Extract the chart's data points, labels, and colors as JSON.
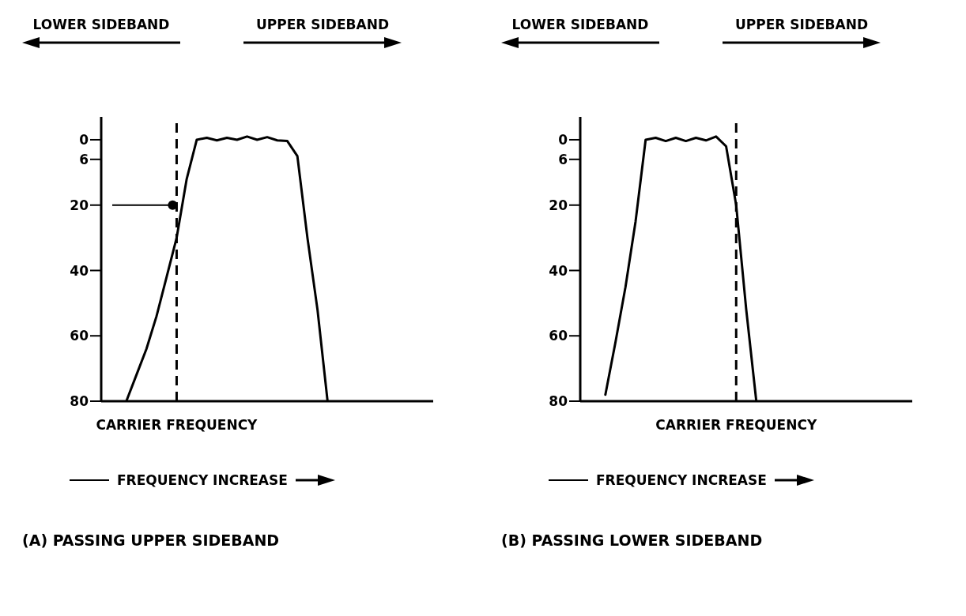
{
  "chart_data": [
    {
      "type": "line",
      "title": "(A) PASSING UPPER SIDEBAND",
      "xlabel": "FREQUENCY INCREASE",
      "annotations": [
        "LOWER SIDEBAND",
        "UPPER SIDEBAND"
      ],
      "categories": [
        null,
        null,
        null,
        null,
        null,
        null,
        null,
        "CARRIER FREQUENCY",
        null,
        null,
        null,
        null,
        null,
        null,
        null,
        null,
        null,
        null,
        null,
        null,
        null,
        null,
        null,
        null,
        null,
        null,
        null,
        null,
        null,
        null,
        null,
        null,
        null
      ],
      "ylim": [
        80,
        -7
      ],
      "yticks": [
        0,
        6,
        20,
        40,
        60,
        80
      ],
      "grid": false,
      "line_style": "solid",
      "ref_lines": [
        {
          "axis": "x",
          "value": "CARRIER FREQUENCY",
          "line_style": "dashed"
        },
        {
          "axis": "y",
          "value": 20
        }
      ],
      "series": [
        {
          "color": "#000000",
          "values": [
            null,
            null,
            80,
            72,
            64,
            54,
            42,
            30,
            12,
            0,
            -0.6,
            0.2,
            -0.6,
            0,
            -1,
            0,
            -0.8,
            0.2,
            0.4,
            5,
            30,
            52,
            80,
            null,
            null,
            null,
            null,
            null,
            null,
            null,
            null,
            null,
            null
          ]
        }
      ]
    },
    {
      "type": "line",
      "title": "(B) PASSING LOWER SIDEBAND",
      "xlabel": "FREQUENCY INCREASE",
      "annotations": [
        "LOWER SIDEBAND",
        "UPPER SIDEBAND"
      ],
      "categories": [
        null,
        null,
        null,
        null,
        null,
        null,
        null,
        null,
        null,
        null,
        null,
        null,
        null,
        null,
        null,
        "CARRIER FREQUENCY",
        null,
        null,
        null,
        null,
        null,
        null,
        null,
        null,
        null,
        null,
        null,
        null,
        null,
        null,
        null,
        null,
        null
      ],
      "ylim": [
        80,
        -7
      ],
      "yticks": [
        0,
        6,
        20,
        40,
        60,
        80
      ],
      "grid": false,
      "line_style": "solid",
      "ref_lines": [
        {
          "axis": "x",
          "value": "CARRIER FREQUENCY",
          "line_style": "dashed"
        }
      ],
      "series": [
        {
          "color": "#000000",
          "values": [
            null,
            null,
            78,
            62,
            45,
            25,
            0,
            -0.6,
            0.4,
            -0.6,
            0.4,
            -0.6,
            0.2,
            -1,
            2,
            20,
            52,
            80,
            null,
            null,
            null,
            null,
            null,
            null,
            null,
            null,
            null,
            null,
            null,
            null,
            null,
            null,
            null
          ]
        }
      ]
    }
  ]
}
